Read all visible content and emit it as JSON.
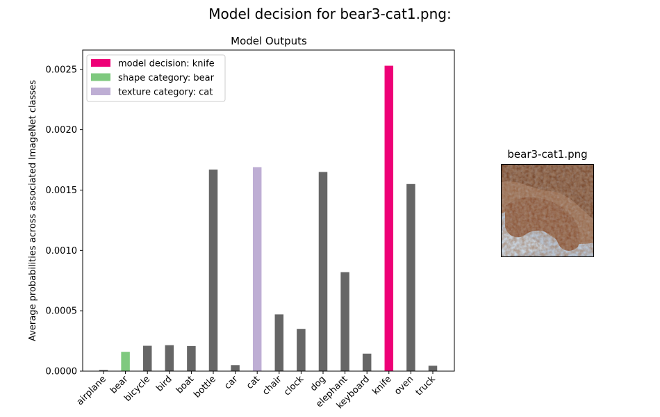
{
  "figure": {
    "suptitle": "Model decision for bear3-cat1.png:",
    "image_title": "bear3-cat1.png"
  },
  "chart_data": {
    "type": "bar",
    "title": "Model Outputs",
    "xlabel": "",
    "ylabel": "Average probabilities across associated ImageNet classes",
    "categories": [
      "airplane",
      "bear",
      "bicycle",
      "bird",
      "boat",
      "bottle",
      "car",
      "cat",
      "chair",
      "clock",
      "dog",
      "elephant",
      "keyboard",
      "knife",
      "oven",
      "truck"
    ],
    "values": [
      1e-05,
      0.00016,
      0.00021,
      0.000215,
      0.000208,
      0.00167,
      5e-05,
      0.00169,
      0.00047,
      0.00035,
      0.00165,
      0.00082,
      0.000145,
      0.00253,
      0.00155,
      4.5e-05
    ],
    "ylim": [
      0,
      0.00266
    ],
    "yticks": [
      "0.0000",
      "0.0005",
      "0.0010",
      "0.0015",
      "0.0020",
      "0.0025"
    ],
    "ytick_values": [
      0,
      0.0005,
      0.001,
      0.0015,
      0.002,
      0.0025
    ],
    "grid": false,
    "legend_position": "top-left",
    "legend": [
      {
        "label": "model decision: knife",
        "color": "#ee0077"
      },
      {
        "label": "shape category: bear",
        "color": "#7fc97f"
      },
      {
        "label": "texture category: cat",
        "color": "#beaed4"
      }
    ],
    "colors": {
      "default": "#666666",
      "decision": "#ee0077",
      "shape": "#7fc97f",
      "texture": "#beaed4"
    },
    "decision_category": "knife",
    "shape_category": "bear",
    "texture_category": "cat"
  }
}
